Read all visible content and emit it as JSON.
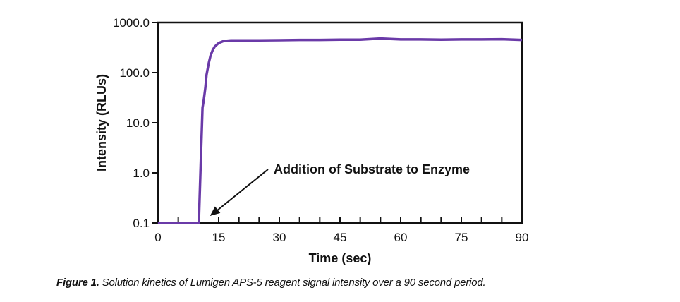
{
  "chart_data": {
    "type": "line",
    "title": "",
    "xlabel": "Time (sec)",
    "ylabel": "Intensity (RLUs)",
    "xlim": [
      0,
      90
    ],
    "ylim": [
      0.1,
      1000
    ],
    "yscale": "log",
    "grid": false,
    "x_ticks": [
      "0",
      "15",
      "30",
      "45",
      "60",
      "75",
      "90"
    ],
    "y_ticks": [
      "0.1",
      "1.0",
      "10.0",
      "100.0",
      "1000.0"
    ],
    "line_color": "#6a3aa8",
    "series": [
      {
        "x": [
          0,
          10,
          10.1,
          10.6,
          11.0,
          11.3,
          11.7,
          12.0,
          12.5,
          13.0,
          13.5,
          14.0,
          15.0,
          16.0,
          17.0,
          18.0,
          20,
          25,
          30,
          35,
          40,
          45,
          50,
          55,
          60,
          65,
          70,
          75,
          80,
          85,
          90
        ],
        "y": [
          0.1,
          0.1,
          0.1,
          2,
          20,
          28,
          50,
          90,
          150,
          220,
          280,
          330,
          390,
          420,
          435,
          440,
          440,
          440,
          445,
          450,
          450,
          455,
          455,
          480,
          460,
          460,
          455,
          460,
          460,
          465,
          450
        ]
      }
    ],
    "annotations": [
      {
        "text": "Addition of Substrate to Enzyme",
        "arrow_to": {
          "x": 12.5,
          "y": 0.1
        }
      }
    ]
  },
  "caption": {
    "label": "Figure 1.",
    "text": " Solution kinetics of Lumigen APS-5 reagent signal intensity over a 90 second period."
  }
}
